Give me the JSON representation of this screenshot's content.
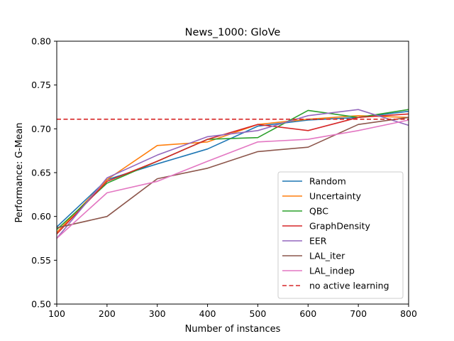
{
  "chart_data": {
    "type": "line",
    "title": "News_1000: GloVe",
    "xlabel": "Number of instances",
    "ylabel": "Performance: G-Mean",
    "xlim": [
      100,
      800
    ],
    "ylim": [
      0.5,
      0.8
    ],
    "xticks": [
      100,
      200,
      300,
      400,
      500,
      600,
      700,
      800
    ],
    "yticks": [
      0.5,
      0.55,
      0.6,
      0.65,
      0.7,
      0.75,
      0.8
    ],
    "x": [
      100,
      200,
      300,
      400,
      500,
      600,
      700,
      800
    ],
    "grid": false,
    "legend_position": "lower-right",
    "series": [
      {
        "name": "Random",
        "color": "#1f77b4",
        "dashed": false,
        "values": [
          0.588,
          0.642,
          0.66,
          0.677,
          0.703,
          0.71,
          0.713,
          0.72
        ]
      },
      {
        "name": "Uncertainty",
        "color": "#ff7f0e",
        "dashed": false,
        "values": [
          0.582,
          0.642,
          0.681,
          0.685,
          0.705,
          0.711,
          0.715,
          0.713
        ]
      },
      {
        "name": "QBC",
        "color": "#2ca02c",
        "dashed": false,
        "values": [
          0.585,
          0.638,
          0.663,
          0.688,
          0.69,
          0.721,
          0.713,
          0.722
        ]
      },
      {
        "name": "GraphDensity",
        "color": "#d62728",
        "dashed": false,
        "values": [
          0.58,
          0.64,
          0.663,
          0.688,
          0.705,
          0.698,
          0.713,
          0.717
        ]
      },
      {
        "name": "EER",
        "color": "#9467bd",
        "dashed": false,
        "values": [
          0.575,
          0.644,
          0.67,
          0.691,
          0.698,
          0.715,
          0.722,
          0.704
        ]
      },
      {
        "name": "LAL_iter",
        "color": "#8c564b",
        "dashed": false,
        "values": [
          0.587,
          0.6,
          0.643,
          0.655,
          0.674,
          0.679,
          0.705,
          0.713
        ]
      },
      {
        "name": "LAL_indep",
        "color": "#e377c2",
        "dashed": false,
        "values": [
          0.575,
          0.627,
          0.64,
          0.663,
          0.685,
          0.688,
          0.698,
          0.71
        ]
      },
      {
        "name": "no active learning",
        "color": "#d62728",
        "dashed": true,
        "values": [
          0.711,
          0.711,
          0.711,
          0.711,
          0.711,
          0.711,
          0.711,
          0.711
        ]
      }
    ]
  }
}
